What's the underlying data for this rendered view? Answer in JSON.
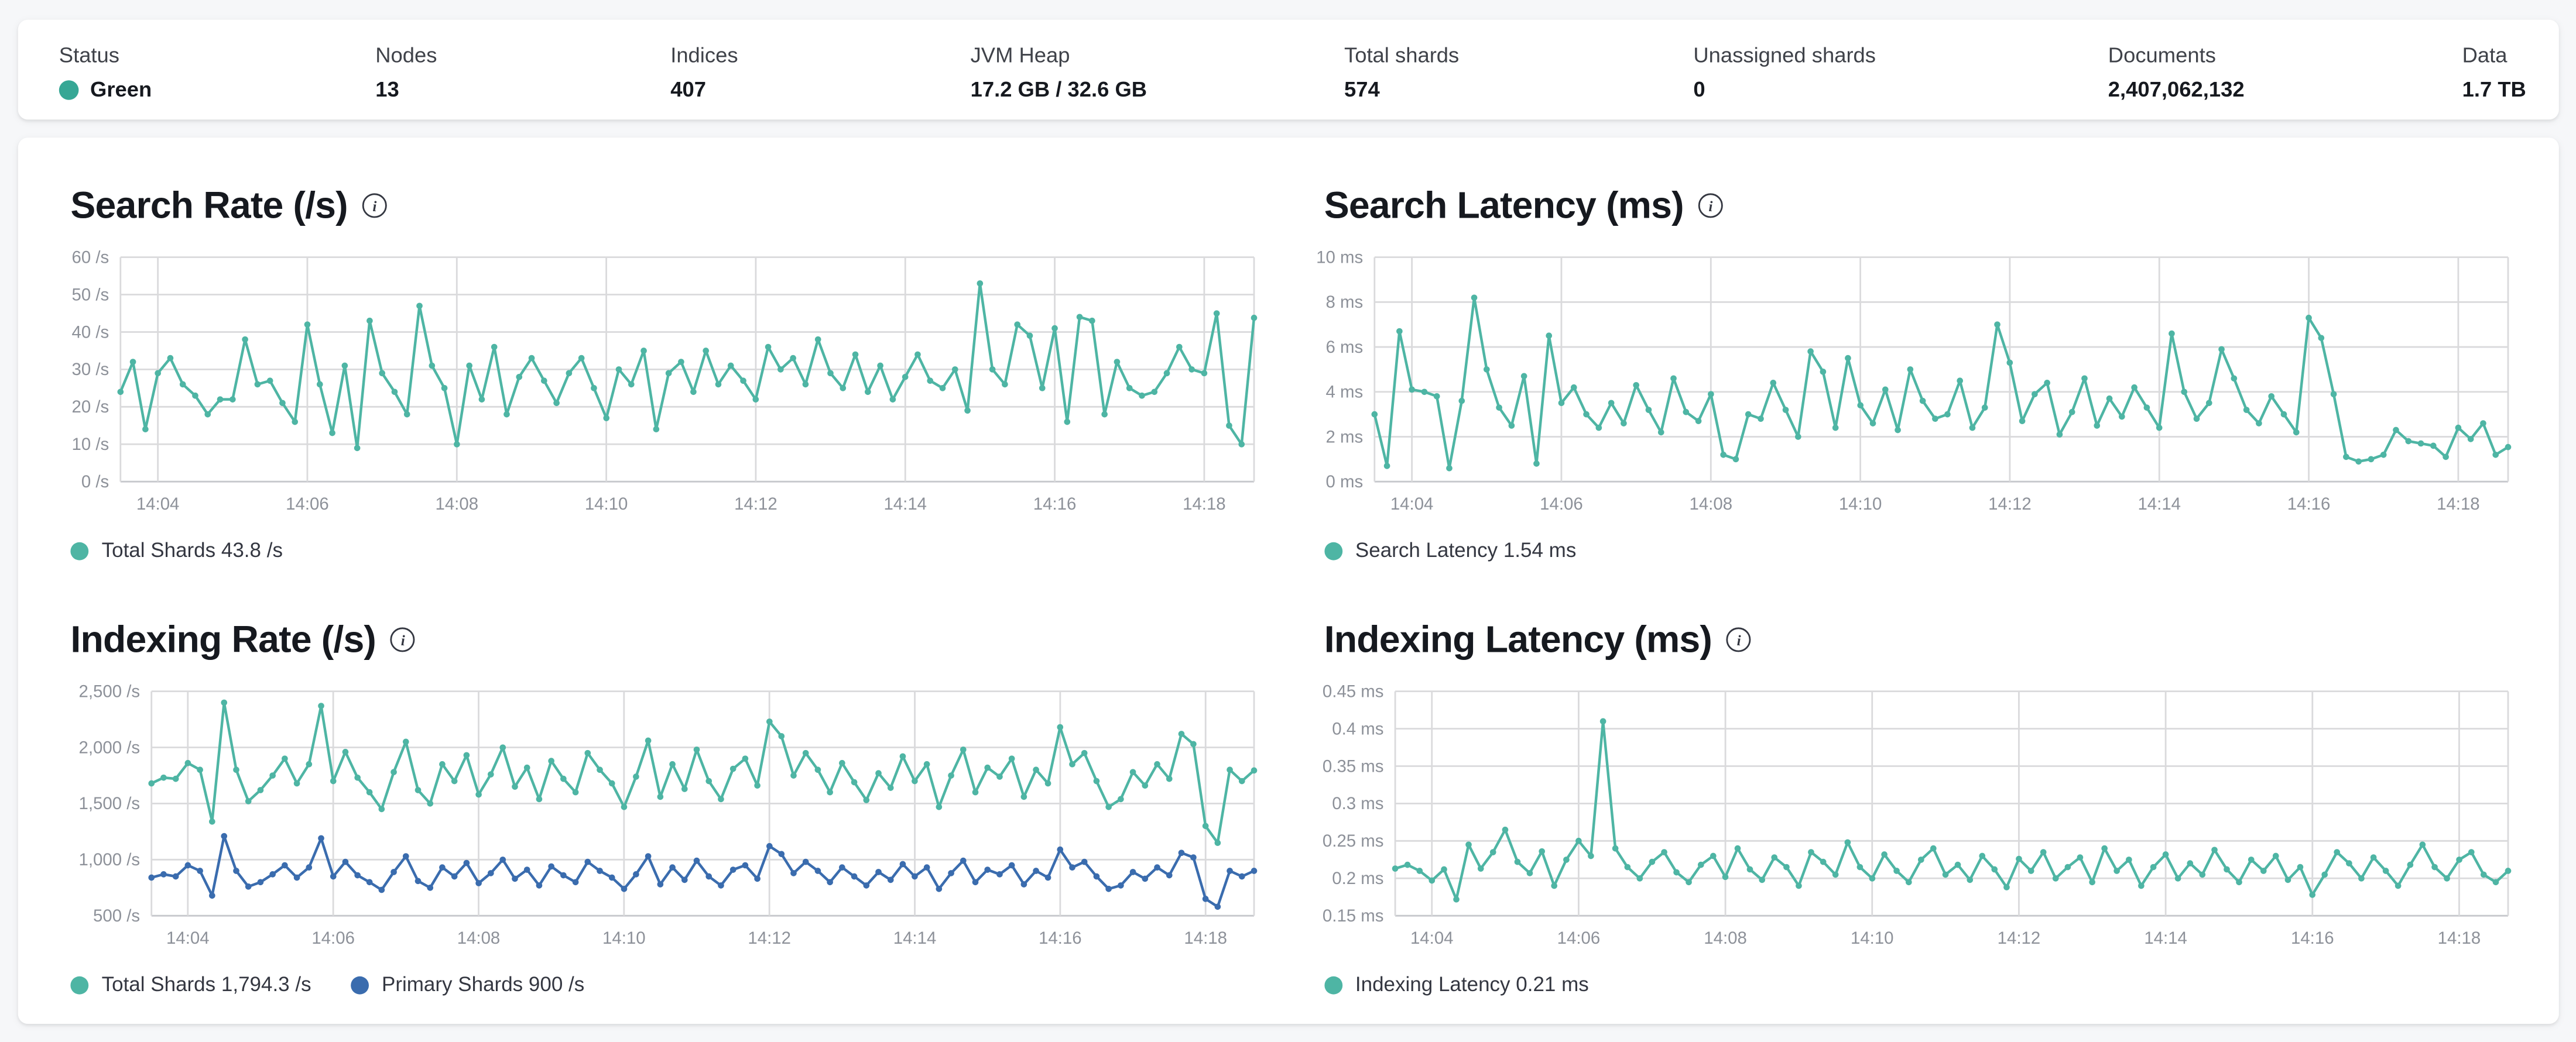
{
  "header": {
    "metrics": [
      {
        "label": "Status",
        "value": "Green",
        "dot_color": "#36a795"
      },
      {
        "label": "Nodes",
        "value": "13"
      },
      {
        "label": "Indices",
        "value": "407"
      },
      {
        "label": "JVM Heap",
        "value": "17.2 GB / 32.6 GB"
      },
      {
        "label": "Total shards",
        "value": "574"
      },
      {
        "label": "Unassigned shards",
        "value": "0"
      },
      {
        "label": "Documents",
        "value": "2,407,062,132"
      },
      {
        "label": "Data",
        "value": "1.7 TB"
      }
    ]
  },
  "colors": {
    "teal": "#4eb5a4",
    "blue": "#3a6cae",
    "grid": "#dadadc",
    "axis": "#c6c8cc",
    "tick_text": "#8d9199"
  },
  "chart_data": [
    {
      "type": "line",
      "title": "Search Rate (/s)",
      "ylabel": "/s",
      "ylim": [
        0,
        60
      ],
      "y_tick_values": [
        60,
        50,
        40,
        30,
        20,
        10,
        0
      ],
      "y_tick_labels": [
        "60 /s",
        "50 /s",
        "40 /s",
        "30 /s",
        "20 /s",
        "10 /s",
        "0 /s"
      ],
      "x_tick_labels": [
        "14:04",
        "14:06",
        "14:08",
        "14:10",
        "14:12",
        "14:14",
        "14:16",
        "14:18"
      ],
      "x_tick_seconds": [
        30,
        150,
        270,
        390,
        510,
        630,
        750,
        870
      ],
      "x_domain_seconds": [
        0,
        910
      ],
      "point_interval_seconds": 10,
      "grid": true,
      "legend_position": "bottom",
      "series": [
        {
          "name": "Total Shards",
          "color": "#4eb5a4",
          "values": [
            24,
            32,
            14,
            29,
            33,
            26,
            23,
            18,
            22,
            22,
            38,
            26,
            27,
            21,
            16,
            42,
            26,
            13,
            31,
            9,
            43,
            29,
            24,
            18,
            47,
            31,
            25,
            10,
            31,
            22,
            36,
            18,
            28,
            33,
            27,
            21,
            29,
            33,
            25,
            17,
            30,
            26,
            35,
            14,
            29,
            32,
            24,
            35,
            26,
            31,
            27,
            22,
            36,
            30,
            33,
            26,
            38,
            29,
            25,
            34,
            24,
            31,
            22,
            28,
            34,
            27,
            25,
            30,
            19,
            53,
            30,
            26,
            42,
            39,
            25,
            41,
            16,
            44,
            43,
            18,
            32,
            25,
            23,
            24,
            29,
            36,
            30,
            29,
            45,
            15,
            10,
            43.8
          ]
        }
      ],
      "legend": [
        {
          "label": "Total Shards 43.8 /s",
          "color": "#4eb5a4"
        }
      ]
    },
    {
      "type": "line",
      "title": "Search Latency (ms)",
      "ylabel": "ms",
      "ylim": [
        0,
        10
      ],
      "y_tick_values": [
        10,
        8,
        6,
        4,
        2,
        0
      ],
      "y_tick_labels": [
        "10 ms",
        "8 ms",
        "6 ms",
        "4 ms",
        "2 ms",
        "0 ms"
      ],
      "x_tick_labels": [
        "14:04",
        "14:06",
        "14:08",
        "14:10",
        "14:12",
        "14:14",
        "14:16",
        "14:18"
      ],
      "x_tick_seconds": [
        30,
        150,
        270,
        390,
        510,
        630,
        750,
        870
      ],
      "x_domain_seconds": [
        0,
        910
      ],
      "point_interval_seconds": 10,
      "grid": true,
      "legend_position": "bottom",
      "series": [
        {
          "name": "Search Latency",
          "color": "#4eb5a4",
          "values": [
            3.0,
            0.7,
            6.7,
            4.1,
            4.0,
            3.8,
            0.6,
            3.6,
            8.2,
            5.0,
            3.3,
            2.5,
            4.7,
            0.8,
            6.5,
            3.5,
            4.2,
            3.0,
            2.4,
            3.5,
            2.6,
            4.3,
            3.2,
            2.2,
            4.6,
            3.1,
            2.7,
            3.9,
            1.2,
            1.0,
            3.0,
            2.8,
            4.4,
            3.2,
            2.0,
            5.8,
            4.9,
            2.4,
            5.5,
            3.4,
            2.6,
            4.1,
            2.3,
            5.0,
            3.6,
            2.8,
            3.0,
            4.5,
            2.4,
            3.3,
            7.0,
            5.3,
            2.7,
            3.9,
            4.4,
            2.1,
            3.1,
            4.6,
            2.5,
            3.7,
            2.9,
            4.2,
            3.3,
            2.4,
            6.6,
            4.0,
            2.8,
            3.5,
            5.9,
            4.6,
            3.2,
            2.6,
            3.8,
            3.0,
            2.2,
            7.3,
            6.4,
            3.9,
            1.1,
            0.9,
            1.0,
            1.2,
            2.3,
            1.8,
            1.7,
            1.6,
            1.1,
            2.4,
            1.9,
            2.6,
            1.2,
            1.54
          ]
        }
      ],
      "legend": [
        {
          "label": "Search Latency 1.54 ms",
          "color": "#4eb5a4"
        }
      ]
    },
    {
      "type": "line",
      "title": "Indexing Rate (/s)",
      "ylabel": "/s",
      "ylim": [
        500,
        2500
      ],
      "y_tick_values": [
        2500,
        2000,
        1500,
        1000,
        500
      ],
      "y_tick_labels": [
        "2,500 /s",
        "2,000 /s",
        "1,500 /s",
        "1,000 /s",
        "500 /s"
      ],
      "x_tick_labels": [
        "14:04",
        "14:06",
        "14:08",
        "14:10",
        "14:12",
        "14:14",
        "14:16",
        "14:18"
      ],
      "x_tick_seconds": [
        30,
        150,
        270,
        390,
        510,
        630,
        750,
        870
      ],
      "x_domain_seconds": [
        0,
        910
      ],
      "point_interval_seconds": 10,
      "grid": true,
      "legend_position": "bottom",
      "series": [
        {
          "name": "Total Shards",
          "color": "#4eb5a4",
          "values": [
            1680,
            1730,
            1720,
            1860,
            1800,
            1340,
            2400,
            1800,
            1520,
            1620,
            1750,
            1900,
            1680,
            1850,
            2370,
            1700,
            1960,
            1730,
            1600,
            1450,
            1780,
            2050,
            1620,
            1500,
            1850,
            1700,
            1930,
            1580,
            1760,
            2000,
            1650,
            1820,
            1540,
            1880,
            1720,
            1600,
            1950,
            1800,
            1680,
            1470,
            1740,
            2060,
            1560,
            1850,
            1630,
            1980,
            1700,
            1540,
            1810,
            1900,
            1660,
            2230,
            2100,
            1750,
            1950,
            1800,
            1600,
            1860,
            1690,
            1530,
            1770,
            1640,
            1920,
            1700,
            1850,
            1470,
            1750,
            1980,
            1600,
            1820,
            1740,
            1900,
            1560,
            1800,
            1680,
            2180,
            1850,
            1950,
            1700,
            1470,
            1540,
            1780,
            1660,
            1850,
            1720,
            2120,
            2030,
            1300,
            1150,
            1800,
            1700,
            1794.3
          ]
        },
        {
          "name": "Primary Shards",
          "color": "#3a6cae",
          "values": [
            840,
            870,
            850,
            950,
            900,
            680,
            1210,
            900,
            760,
            800,
            870,
            950,
            840,
            930,
            1190,
            850,
            980,
            860,
            800,
            730,
            890,
            1030,
            810,
            750,
            930,
            850,
            970,
            790,
            880,
            1000,
            830,
            910,
            770,
            940,
            860,
            800,
            980,
            900,
            840,
            740,
            870,
            1030,
            780,
            930,
            820,
            990,
            850,
            770,
            910,
            950,
            830,
            1120,
            1050,
            880,
            980,
            900,
            800,
            930,
            850,
            770,
            890,
            820,
            960,
            850,
            930,
            740,
            880,
            990,
            800,
            910,
            870,
            950,
            780,
            900,
            840,
            1090,
            930,
            980,
            850,
            740,
            770,
            890,
            830,
            930,
            860,
            1060,
            1020,
            650,
            580,
            900,
            850,
            900
          ]
        }
      ],
      "legend": [
        {
          "label": "Total Shards 1,794.3 /s",
          "color": "#4eb5a4"
        },
        {
          "label": "Primary Shards 900 /s",
          "color": "#3a6cae"
        }
      ]
    },
    {
      "type": "line",
      "title": "Indexing Latency (ms)",
      "ylabel": "ms",
      "ylim": [
        0.15,
        0.45
      ],
      "y_tick_values": [
        0.45,
        0.4,
        0.35,
        0.3,
        0.25,
        0.2,
        0.15
      ],
      "y_tick_labels": [
        "0.45 ms",
        "0.4 ms",
        "0.35 ms",
        "0.3 ms",
        "0.25 ms",
        "0.2 ms",
        "0.15 ms"
      ],
      "x_tick_labels": [
        "14:04",
        "14:06",
        "14:08",
        "14:10",
        "14:12",
        "14:14",
        "14:16",
        "14:18"
      ],
      "x_tick_seconds": [
        30,
        150,
        270,
        390,
        510,
        630,
        750,
        870
      ],
      "x_domain_seconds": [
        0,
        910
      ],
      "point_interval_seconds": 10,
      "grid": true,
      "legend_position": "bottom",
      "series": [
        {
          "name": "Indexing Latency",
          "color": "#4eb5a4",
          "values": [
            0.213,
            0.218,
            0.21,
            0.197,
            0.212,
            0.172,
            0.245,
            0.213,
            0.235,
            0.265,
            0.222,
            0.207,
            0.236,
            0.19,
            0.225,
            0.25,
            0.23,
            0.41,
            0.24,
            0.215,
            0.2,
            0.222,
            0.235,
            0.208,
            0.195,
            0.218,
            0.23,
            0.202,
            0.24,
            0.212,
            0.198,
            0.228,
            0.215,
            0.19,
            0.235,
            0.222,
            0.205,
            0.248,
            0.215,
            0.2,
            0.232,
            0.21,
            0.195,
            0.225,
            0.24,
            0.205,
            0.218,
            0.198,
            0.23,
            0.212,
            0.188,
            0.226,
            0.21,
            0.235,
            0.2,
            0.215,
            0.228,
            0.195,
            0.24,
            0.21,
            0.225,
            0.19,
            0.215,
            0.232,
            0.2,
            0.22,
            0.205,
            0.238,
            0.212,
            0.195,
            0.225,
            0.21,
            0.23,
            0.198,
            0.215,
            0.178,
            0.205,
            0.235,
            0.22,
            0.2,
            0.228,
            0.21,
            0.19,
            0.218,
            0.245,
            0.215,
            0.2,
            0.225,
            0.235,
            0.205,
            0.195,
            0.21
          ]
        }
      ],
      "legend": [
        {
          "label": "Indexing Latency 0.21 ms",
          "color": "#4eb5a4"
        }
      ]
    }
  ]
}
